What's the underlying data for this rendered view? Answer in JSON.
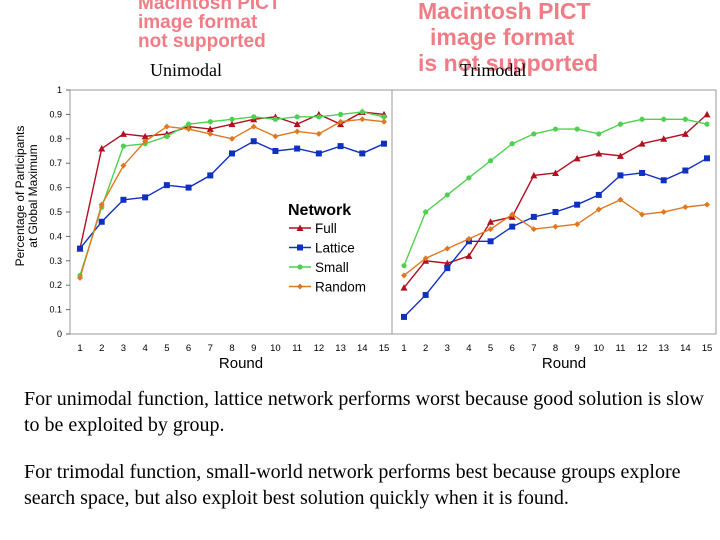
{
  "placeholders": {
    "left": [
      "Macintosh PICT",
      "image format",
      "not supported"
    ],
    "right": [
      "Macintosh PICT",
      "image format",
      "is not supported"
    ]
  },
  "captions": {
    "left": "Unimodal",
    "right": "Trimodal"
  },
  "paragraphs": [
    "For unimodal function, lattice network performs worst because good solution is slow to be exploited by group.",
    "For trimodal function, small-world network performs best because groups explore search space, but also exploit best solution quickly when it is found."
  ],
  "colors": {
    "full": "#b01020",
    "lattice": "#1030c0",
    "small": "#50d050",
    "random": "#e07820",
    "placeholder": "#f07c86"
  },
  "chart_data": [
    {
      "type": "line",
      "title": "Unimodal",
      "xlabel": "Round",
      "ylabel": "Percentage of Participants at Global Maximum",
      "yticks": [
        "0",
        "0.1",
        "0.2",
        "0.3",
        "0.4",
        "0.5",
        "0.6",
        "0.7",
        "0.8",
        "0.9",
        "1"
      ],
      "ylim": [
        0,
        1
      ],
      "x": [
        1,
        2,
        3,
        4,
        5,
        6,
        7,
        8,
        9,
        10,
        11,
        12,
        13,
        14,
        15
      ],
      "legend": {
        "title": "Network",
        "position": "inside-center"
      },
      "series": [
        {
          "name": "Full",
          "marker": "triangle",
          "color": "#b01020",
          "values": [
            0.35,
            0.76,
            0.82,
            0.81,
            0.82,
            0.85,
            0.84,
            0.86,
            0.88,
            0.89,
            0.86,
            0.9,
            0.86,
            0.91,
            0.9
          ]
        },
        {
          "name": "Lattice",
          "marker": "square",
          "color": "#1030c0",
          "values": [
            0.35,
            0.46,
            0.55,
            0.56,
            0.61,
            0.6,
            0.65,
            0.74,
            0.79,
            0.75,
            0.76,
            0.74,
            0.77,
            0.74,
            0.78
          ]
        },
        {
          "name": "Small",
          "marker": "circle",
          "color": "#50d050",
          "values": [
            0.24,
            0.52,
            0.77,
            0.78,
            0.81,
            0.86,
            0.87,
            0.88,
            0.89,
            0.88,
            0.89,
            0.89,
            0.9,
            0.91,
            0.89
          ]
        },
        {
          "name": "Random",
          "marker": "diamond",
          "color": "#e07820",
          "values": [
            0.23,
            0.53,
            0.69,
            0.79,
            0.85,
            0.84,
            0.82,
            0.8,
            0.85,
            0.81,
            0.83,
            0.82,
            0.87,
            0.88,
            0.87
          ]
        }
      ]
    },
    {
      "type": "line",
      "title": "Trimodal",
      "xlabel": "Round",
      "ylim": [
        0,
        1
      ],
      "x": [
        1,
        2,
        3,
        4,
        5,
        6,
        7,
        8,
        9,
        10,
        11,
        12,
        13,
        14,
        15
      ],
      "series": [
        {
          "name": "Full",
          "marker": "triangle",
          "color": "#b01020",
          "values": [
            0.19,
            0.3,
            0.29,
            0.32,
            0.46,
            0.48,
            0.65,
            0.66,
            0.72,
            0.74,
            0.73,
            0.78,
            0.8,
            0.82,
            0.9
          ]
        },
        {
          "name": "Lattice",
          "marker": "square",
          "color": "#1030c0",
          "values": [
            0.07,
            0.16,
            0.27,
            0.38,
            0.38,
            0.44,
            0.48,
            0.5,
            0.53,
            0.57,
            0.65,
            0.66,
            0.63,
            0.67,
            0.72
          ]
        },
        {
          "name": "Small",
          "marker": "circle",
          "color": "#50d050",
          "values": [
            0.28,
            0.5,
            0.57,
            0.64,
            0.71,
            0.78,
            0.82,
            0.84,
            0.84,
            0.82,
            0.86,
            0.88,
            0.88,
            0.88,
            0.86
          ]
        },
        {
          "name": "Random",
          "marker": "diamond",
          "color": "#e07820",
          "values": [
            0.24,
            0.31,
            0.35,
            0.39,
            0.43,
            0.49,
            0.43,
            0.44,
            0.45,
            0.51,
            0.55,
            0.49,
            0.5,
            0.52,
            0.53
          ]
        }
      ]
    }
  ]
}
